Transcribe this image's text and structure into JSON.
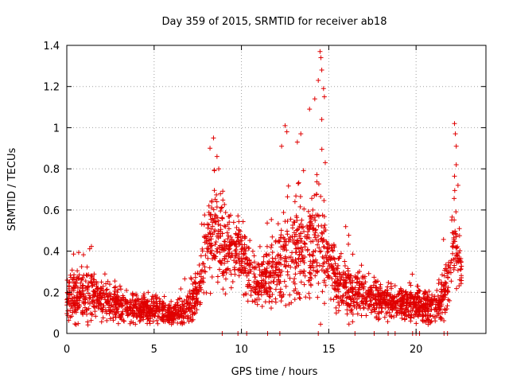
{
  "chart_data": {
    "type": "scatter",
    "title": "Day 359 of 2015, SRMTID for receiver ab18",
    "xlabel": "GPS time / hours",
    "ylabel": "SRMTID / TECUs",
    "xlim": [
      0,
      24
    ],
    "ylim": [
      0,
      1.4
    ],
    "xticks": [
      0,
      5,
      10,
      15,
      20
    ],
    "xtick_labels": [
      "0",
      "5",
      "10",
      "15",
      "20"
    ],
    "yticks": [
      0,
      0.2,
      0.4,
      0.6,
      0.8,
      1.0,
      1.2,
      1.4
    ],
    "ytick_labels": [
      "0",
      "0.2",
      "0.4",
      "0.6",
      "0.8",
      "1",
      "1.2",
      "1.4"
    ],
    "grid": true,
    "marker": "plus",
    "marker_color": "#e00000",
    "series": [
      {
        "name": "SRMTID",
        "density_profile": [
          {
            "x": 0.0,
            "median": 0.17,
            "spread": 0.09
          },
          {
            "x": 0.5,
            "median": 0.18,
            "spread": 0.1
          },
          {
            "x": 1.0,
            "median": 0.19,
            "spread": 0.09
          },
          {
            "x": 2.0,
            "median": 0.17,
            "spread": 0.08
          },
          {
            "x": 3.0,
            "median": 0.13,
            "spread": 0.06
          },
          {
            "x": 4.0,
            "median": 0.12,
            "spread": 0.05
          },
          {
            "x": 5.0,
            "median": 0.12,
            "spread": 0.05
          },
          {
            "x": 6.0,
            "median": 0.09,
            "spread": 0.04
          },
          {
            "x": 7.0,
            "median": 0.12,
            "spread": 0.06
          },
          {
            "x": 7.6,
            "median": 0.22,
            "spread": 0.08
          },
          {
            "x": 8.0,
            "median": 0.42,
            "spread": 0.15
          },
          {
            "x": 8.5,
            "median": 0.5,
            "spread": 0.18
          },
          {
            "x": 9.0,
            "median": 0.42,
            "spread": 0.15
          },
          {
            "x": 9.5,
            "median": 0.4,
            "spread": 0.12
          },
          {
            "x": 10.0,
            "median": 0.38,
            "spread": 0.12
          },
          {
            "x": 10.5,
            "median": 0.28,
            "spread": 0.1
          },
          {
            "x": 11.0,
            "median": 0.24,
            "spread": 0.09
          },
          {
            "x": 12.0,
            "median": 0.3,
            "spread": 0.12
          },
          {
            "x": 12.5,
            "median": 0.35,
            "spread": 0.16
          },
          {
            "x": 13.0,
            "median": 0.38,
            "spread": 0.18
          },
          {
            "x": 14.0,
            "median": 0.42,
            "spread": 0.2
          },
          {
            "x": 14.5,
            "median": 0.45,
            "spread": 0.22
          },
          {
            "x": 15.0,
            "median": 0.32,
            "spread": 0.12
          },
          {
            "x": 16.0,
            "median": 0.22,
            "spread": 0.1
          },
          {
            "x": 17.0,
            "median": 0.18,
            "spread": 0.07
          },
          {
            "x": 18.0,
            "median": 0.16,
            "spread": 0.06
          },
          {
            "x": 19.0,
            "median": 0.15,
            "spread": 0.06
          },
          {
            "x": 20.0,
            "median": 0.14,
            "spread": 0.06
          },
          {
            "x": 21.0,
            "median": 0.13,
            "spread": 0.06
          },
          {
            "x": 21.8,
            "median": 0.2,
            "spread": 0.1
          },
          {
            "x": 22.2,
            "median": 0.45,
            "spread": 0.18
          },
          {
            "x": 22.6,
            "median": 0.3,
            "spread": 0.05
          }
        ],
        "outliers": [
          {
            "x": 8.2,
            "y": 0.9
          },
          {
            "x": 8.4,
            "y": 0.95
          },
          {
            "x": 8.6,
            "y": 0.86
          },
          {
            "x": 8.7,
            "y": 0.8
          },
          {
            "x": 12.3,
            "y": 0.91
          },
          {
            "x": 12.5,
            "y": 1.01
          },
          {
            "x": 12.6,
            "y": 0.98
          },
          {
            "x": 13.2,
            "y": 0.93
          },
          {
            "x": 13.4,
            "y": 0.97
          },
          {
            "x": 13.9,
            "y": 1.09
          },
          {
            "x": 14.2,
            "y": 1.14
          },
          {
            "x": 14.4,
            "y": 1.23
          },
          {
            "x": 14.5,
            "y": 1.37
          },
          {
            "x": 14.55,
            "y": 1.34
          },
          {
            "x": 14.6,
            "y": 1.28
          },
          {
            "x": 14.7,
            "y": 1.19
          },
          {
            "x": 14.75,
            "y": 1.15
          },
          {
            "x": 14.6,
            "y": 1.04
          },
          {
            "x": 14.8,
            "y": 0.83
          },
          {
            "x": 22.2,
            "y": 1.02
          },
          {
            "x": 22.25,
            "y": 0.97
          },
          {
            "x": 22.3,
            "y": 0.91
          },
          {
            "x": 22.3,
            "y": 0.82
          },
          {
            "x": 22.4,
            "y": 0.72
          }
        ],
        "zero_points_x": [
          8.9,
          9.8,
          10.3,
          11.5,
          12.2,
          14.4,
          16.5,
          17.6,
          18.4,
          18.8,
          19.8,
          20.0,
          20.2,
          21.6,
          21.8
        ]
      }
    ]
  }
}
